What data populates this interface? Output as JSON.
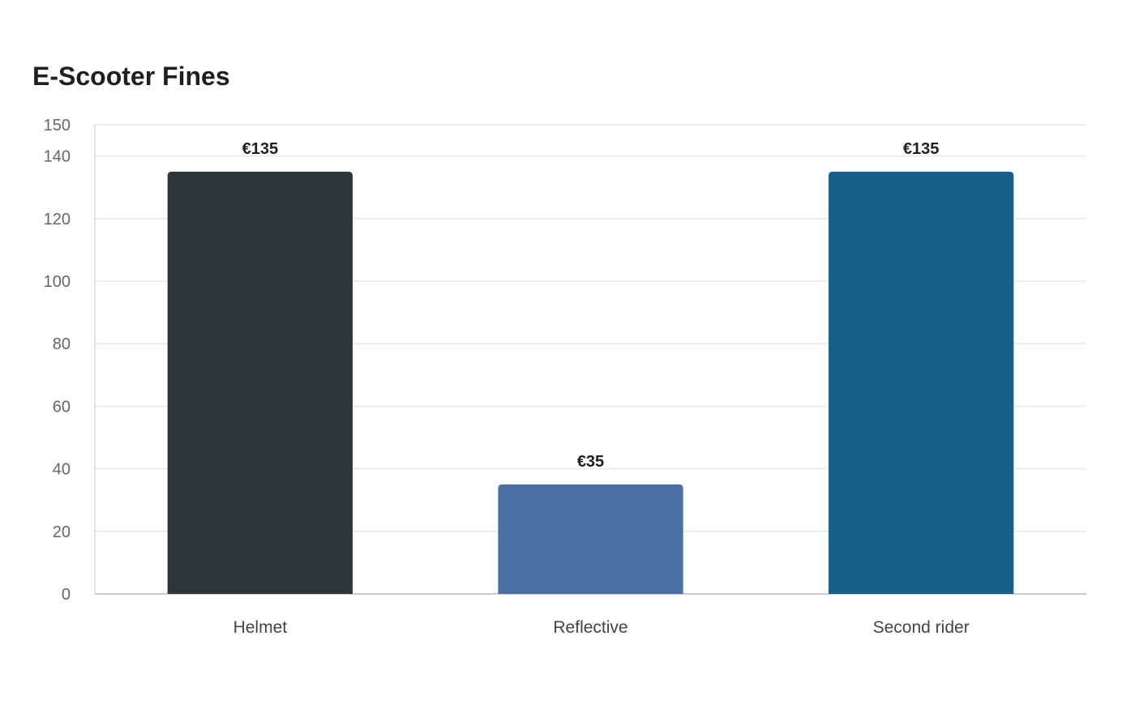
{
  "chart_data": {
    "type": "bar",
    "title": "E-Scooter Fines",
    "categories": [
      "Helmet",
      "Reflective",
      "Second rider"
    ],
    "values": [
      135,
      35,
      135
    ],
    "data_labels": [
      "€135",
      "€35",
      "€135"
    ],
    "bar_colors": [
      "#2e3538",
      "#4a6fa3",
      "#17608a"
    ],
    "ylim": [
      0,
      150
    ],
    "yticks": [
      0,
      20,
      40,
      60,
      80,
      100,
      120,
      140,
      150
    ],
    "ytick_labels": [
      "0",
      "20",
      "40",
      "60",
      "80",
      "100",
      "120",
      "140",
      "150"
    ],
    "grid": true,
    "xlabel": "",
    "ylabel": ""
  }
}
